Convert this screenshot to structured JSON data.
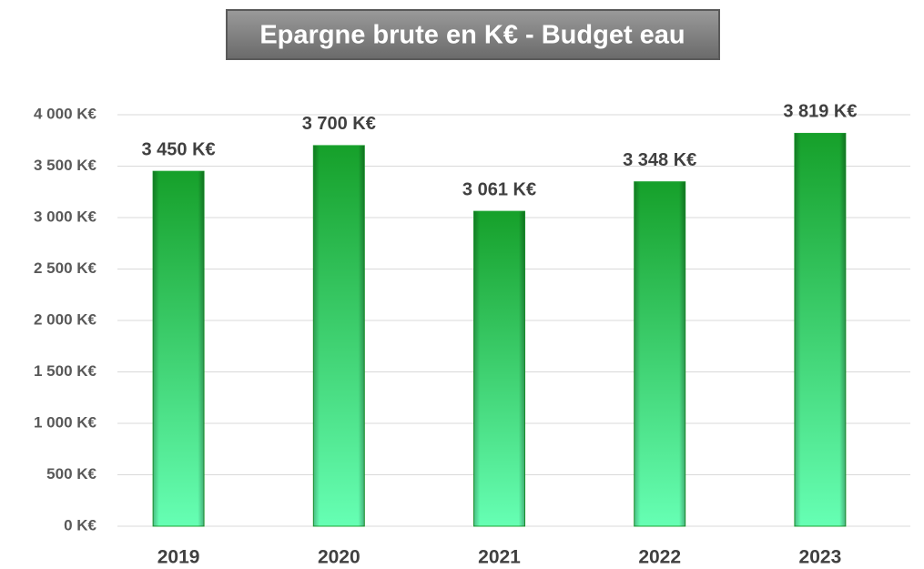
{
  "chart_data": {
    "type": "bar",
    "title": "Epargne brute en K€ - Budget eau",
    "categories": [
      "2019",
      "2020",
      "2021",
      "2022",
      "2023"
    ],
    "values": [
      3450,
      3700,
      3061,
      3348,
      3819
    ],
    "value_labels": [
      "3 450 K€",
      "3 700 K€",
      "3 061 K€",
      "3 348 K€",
      "3 819 K€"
    ],
    "color": "#1fa533",
    "ylim": [
      0,
      4000
    ],
    "yticks": [
      {
        "value": 0,
        "label": "0 K€"
      },
      {
        "value": 500,
        "label": "500 K€"
      },
      {
        "value": 1000,
        "label": "1 000 K€"
      },
      {
        "value": 1500,
        "label": "1 500 K€"
      },
      {
        "value": 2000,
        "label": "2 000 K€"
      },
      {
        "value": 2500,
        "label": "2 500 K€"
      },
      {
        "value": 3000,
        "label": "3 000 K€"
      },
      {
        "value": 3500,
        "label": "3 500 K€"
      },
      {
        "value": 4000,
        "label": "4 000 K€"
      }
    ],
    "grid": true
  }
}
